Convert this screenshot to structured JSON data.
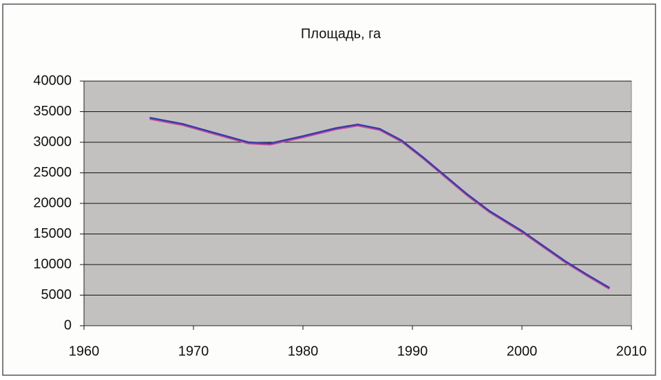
{
  "chart_data": {
    "type": "line",
    "title": "Площадь, га",
    "x": [
      1966,
      1969,
      1972,
      1975,
      1977,
      1980,
      1983,
      1985,
      1987,
      1989,
      1991,
      1993,
      1995,
      1997,
      2000,
      2002,
      2004,
      2006,
      2008
    ],
    "values": [
      34000,
      33000,
      31500,
      30000,
      29800,
      31000,
      32300,
      32900,
      32200,
      30300,
      27500,
      24500,
      21500,
      18800,
      15500,
      13000,
      10500,
      8300,
      6200
    ],
    "color": "#3b3ba6",
    "xlim": [
      1960,
      2010
    ],
    "xticks": [
      1960,
      1970,
      1980,
      1990,
      2000,
      2010
    ],
    "ylim": [
      0,
      40000
    ],
    "yticks": [
      0,
      5000,
      10000,
      15000,
      20000,
      25000,
      30000,
      35000,
      40000
    ],
    "grid": true
  }
}
